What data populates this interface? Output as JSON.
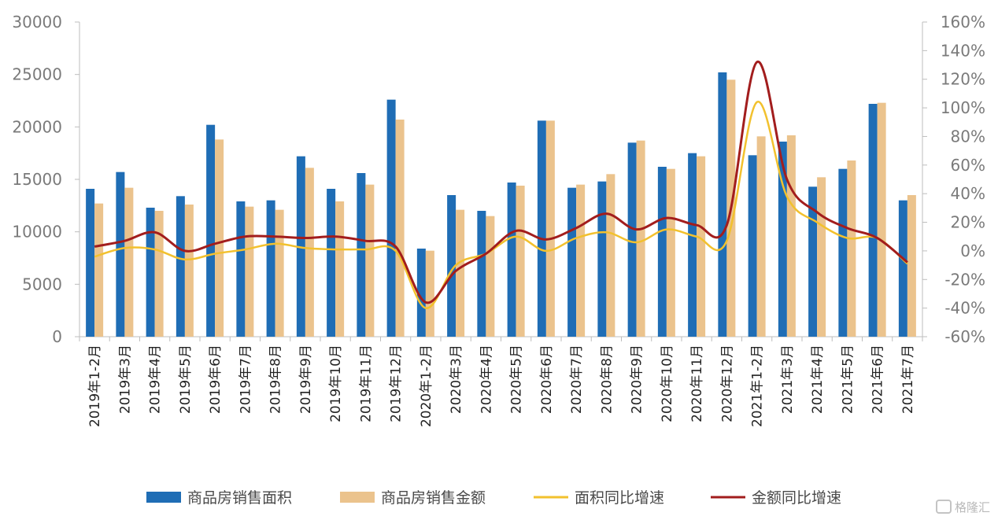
{
  "chart_data": {
    "type": "bar",
    "categories": [
      "2019年1-2月",
      "2019年3月",
      "2019年4月",
      "2019年5月",
      "2019年6月",
      "2019年7月",
      "2019年8月",
      "2019年9月",
      "2019年10月",
      "2019年11月",
      "2019年12月",
      "2020年1-2月",
      "2020年3月",
      "2020年4月",
      "2020年5月",
      "2020年6月",
      "2020年7月",
      "2020年8月",
      "2020年9月",
      "2020年10月",
      "2020年11月",
      "2020年12月",
      "2021年1-2月",
      "2021年3月",
      "2021年4月",
      "2021年5月",
      "2021年6月",
      "2021年7月"
    ],
    "series": [
      {
        "name": "商品房销售面积",
        "kind": "bar",
        "axis": "left",
        "color": "#1f6db5",
        "values": [
          14100,
          15700,
          12300,
          13400,
          20200,
          12900,
          13000,
          17200,
          14100,
          15600,
          22600,
          8400,
          13500,
          12000,
          14700,
          20600,
          14200,
          14800,
          18500,
          16200,
          17500,
          25200,
          17300,
          18600,
          14300,
          16000,
          22200,
          13000
        ]
      },
      {
        "name": "商品房销售金额",
        "kind": "bar",
        "axis": "left",
        "color": "#ebc38d",
        "values": [
          12700,
          14200,
          12000,
          12600,
          18800,
          12400,
          12100,
          16100,
          12900,
          14500,
          20700,
          8200,
          12100,
          11500,
          14400,
          20600,
          14500,
          15500,
          18700,
          16000,
          17200,
          24500,
          19100,
          19200,
          15200,
          16800,
          22300,
          13500
        ]
      },
      {
        "name": "面积同比增速",
        "kind": "line",
        "axis": "right",
        "color": "#f2c12e",
        "values": [
          -4,
          2,
          1,
          -6,
          -2,
          1,
          5,
          2,
          1,
          1,
          0,
          -40,
          -10,
          -2,
          10,
          0,
          9,
          13,
          6,
          15,
          10,
          7,
          104,
          38,
          20,
          9,
          9,
          -9
        ]
      },
      {
        "name": "金额同比增速",
        "kind": "line",
        "axis": "right",
        "color": "#a21d1d",
        "values": [
          3,
          7,
          13,
          0,
          5,
          10,
          10,
          9,
          10,
          7,
          3,
          -36,
          -14,
          -2,
          14,
          8,
          16,
          26,
          15,
          23,
          18,
          18,
          132,
          50,
          27,
          16,
          9,
          -8
        ]
      }
    ],
    "y_left": {
      "min": 0,
      "max": 30000,
      "ticks": [
        "0",
        "5000",
        "10000",
        "15000",
        "20000",
        "25000",
        "30000"
      ]
    },
    "y_right": {
      "min": -60,
      "max": 160,
      "ticks": [
        "-60%",
        "-40%",
        "-20%",
        "0%",
        "20%",
        "40%",
        "60%",
        "80%",
        "100%",
        "120%",
        "140%",
        "160%"
      ]
    },
    "grid": false,
    "legend_position": "bottom"
  },
  "watermark": "格隆汇"
}
